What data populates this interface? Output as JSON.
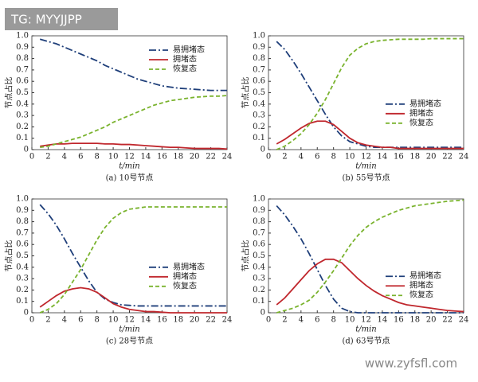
{
  "overlay": {
    "top_left": "TG: MYYJJPP",
    "bottom_right": "www.zyfsfl.com"
  },
  "chart_data": [
    {
      "type": "line",
      "caption": "(a) 10号节点",
      "xlabel": "t/min",
      "ylabel": "节点占比",
      "x": [
        1,
        2,
        3,
        4,
        5,
        6,
        7,
        8,
        9,
        10,
        11,
        12,
        13,
        14,
        15,
        16,
        17,
        18,
        19,
        20,
        21,
        22,
        23,
        24
      ],
      "xlim": [
        0,
        24
      ],
      "xticks": [
        0,
        2,
        4,
        6,
        8,
        10,
        12,
        14,
        16,
        18,
        20,
        22,
        24
      ],
      "ylim": [
        0,
        1
      ],
      "yticks": [
        0,
        0.1,
        0.2,
        0.3,
        0.4,
        0.5,
        0.6,
        0.7,
        0.8,
        0.9,
        {
          "value": 1,
          "label": "1.0"
        }
      ],
      "legend_position": "upper right",
      "series": [
        {
          "name": "易拥堵态",
          "color": "#1f3f7a",
          "dash": "dashdot",
          "values": [
            0.97,
            0.95,
            0.93,
            0.9,
            0.87,
            0.84,
            0.81,
            0.78,
            0.74,
            0.71,
            0.68,
            0.65,
            0.62,
            0.6,
            0.58,
            0.56,
            0.55,
            0.54,
            0.535,
            0.53,
            0.525,
            0.52,
            0.52,
            0.52
          ]
        },
        {
          "name": "拥堵态",
          "color": "#c0272d",
          "dash": "solid",
          "values": [
            0.03,
            0.04,
            0.05,
            0.05,
            0.055,
            0.055,
            0.055,
            0.055,
            0.05,
            0.05,
            0.045,
            0.045,
            0.04,
            0.035,
            0.03,
            0.025,
            0.02,
            0.02,
            0.015,
            0.01,
            0.01,
            0.01,
            0.01,
            0.005
          ]
        },
        {
          "name": "恢复态",
          "color": "#7ab32e",
          "dash": "dashed",
          "values": [
            0.02,
            0.03,
            0.05,
            0.07,
            0.09,
            0.11,
            0.14,
            0.17,
            0.2,
            0.24,
            0.27,
            0.3,
            0.33,
            0.36,
            0.39,
            0.41,
            0.43,
            0.44,
            0.45,
            0.46,
            0.465,
            0.47,
            0.47,
            0.475
          ]
        }
      ]
    },
    {
      "type": "line",
      "caption": "(b) 55号节点",
      "xlabel": "t/min",
      "ylabel": "节点占比",
      "x": [
        1,
        2,
        3,
        4,
        5,
        6,
        7,
        8,
        9,
        10,
        11,
        12,
        13,
        14,
        15,
        16,
        17,
        18,
        19,
        20,
        21,
        22,
        23,
        24
      ],
      "xlim": [
        0,
        24
      ],
      "xticks": [
        0,
        2,
        4,
        6,
        8,
        10,
        12,
        14,
        16,
        18,
        20,
        22,
        24
      ],
      "ylim": [
        0,
        1
      ],
      "yticks": [
        0,
        0.1,
        0.2,
        0.3,
        0.4,
        0.5,
        0.6,
        0.7,
        0.8,
        0.9,
        {
          "value": 1,
          "label": "1.0"
        }
      ],
      "legend_position": "center right",
      "series": [
        {
          "name": "易拥堵态",
          "color": "#1f3f7a",
          "dash": "dashdot",
          "values": [
            0.95,
            0.88,
            0.78,
            0.67,
            0.55,
            0.43,
            0.31,
            0.2,
            0.12,
            0.07,
            0.05,
            0.03,
            0.02,
            0.02,
            0.02,
            0.02,
            0.02,
            0.02,
            0.02,
            0.02,
            0.02,
            0.02,
            0.02,
            0.02
          ]
        },
        {
          "name": "拥堵态",
          "color": "#c0272d",
          "dash": "solid",
          "values": [
            0.05,
            0.09,
            0.14,
            0.19,
            0.23,
            0.25,
            0.25,
            0.22,
            0.16,
            0.1,
            0.06,
            0.04,
            0.03,
            0.02,
            0.02,
            0.01,
            0.01,
            0.01,
            0.01,
            0.01,
            0.01,
            0.01,
            0.01,
            0.01
          ]
        },
        {
          "name": "恢复态",
          "color": "#7ab32e",
          "dash": "dashed",
          "values": [
            0,
            0.03,
            0.08,
            0.14,
            0.22,
            0.32,
            0.44,
            0.58,
            0.72,
            0.83,
            0.89,
            0.93,
            0.95,
            0.96,
            0.965,
            0.97,
            0.97,
            0.97,
            0.97,
            0.975,
            0.975,
            0.975,
            0.975,
            0.975
          ]
        }
      ]
    },
    {
      "type": "line",
      "caption": "(c) 28号节点",
      "xlabel": "t/min",
      "ylabel": "节点占比",
      "x": [
        1,
        2,
        3,
        4,
        5,
        6,
        7,
        8,
        9,
        10,
        11,
        12,
        13,
        14,
        15,
        16,
        17,
        18,
        19,
        20,
        21,
        22,
        23,
        24
      ],
      "xlim": [
        0,
        24
      ],
      "xticks": [
        0,
        2,
        4,
        6,
        8,
        10,
        12,
        14,
        16,
        18,
        20,
        22,
        24
      ],
      "ylim": [
        0,
        1
      ],
      "yticks": [
        0,
        0.1,
        0.2,
        0.3,
        0.4,
        0.5,
        0.6,
        0.7,
        0.8,
        0.9,
        {
          "value": 1,
          "label": "1.0"
        }
      ],
      "legend_position": "center right",
      "series": [
        {
          "name": "易拥堵态",
          "color": "#1f3f7a",
          "dash": "dashdot",
          "values": [
            0.95,
            0.87,
            0.77,
            0.65,
            0.52,
            0.4,
            0.28,
            0.18,
            0.12,
            0.09,
            0.07,
            0.065,
            0.06,
            0.06,
            0.06,
            0.06,
            0.06,
            0.06,
            0.06,
            0.06,
            0.06,
            0.06,
            0.06,
            0.06
          ]
        },
        {
          "name": "拥堵态",
          "color": "#c0272d",
          "dash": "solid",
          "values": [
            0.05,
            0.1,
            0.15,
            0.19,
            0.21,
            0.22,
            0.21,
            0.18,
            0.13,
            0.08,
            0.05,
            0.03,
            0.02,
            0.01,
            0.01,
            0.005,
            0,
            0,
            0,
            0,
            0,
            0,
            0,
            0
          ]
        },
        {
          "name": "恢复态",
          "color": "#7ab32e",
          "dash": "dashed",
          "values": [
            0,
            0.03,
            0.08,
            0.16,
            0.27,
            0.38,
            0.51,
            0.64,
            0.75,
            0.83,
            0.88,
            0.91,
            0.92,
            0.93,
            0.93,
            0.93,
            0.93,
            0.93,
            0.93,
            0.93,
            0.93,
            0.93,
            0.93,
            0.93
          ]
        }
      ]
    },
    {
      "type": "line",
      "caption": "(d) 63号节点",
      "xlabel": "t/min",
      "ylabel": "节点占比",
      "x": [
        1,
        2,
        3,
        4,
        5,
        6,
        7,
        8,
        9,
        10,
        11,
        12,
        13,
        14,
        15,
        16,
        17,
        18,
        19,
        20,
        21,
        22,
        23,
        24
      ],
      "xlim": [
        0,
        24
      ],
      "xticks": [
        0,
        2,
        4,
        6,
        8,
        10,
        12,
        14,
        16,
        18,
        20,
        22,
        24
      ],
      "ylim": [
        0,
        1
      ],
      "yticks": [
        0,
        0.1,
        0.2,
        0.3,
        0.4,
        0.5,
        0.6,
        0.7,
        0.8,
        0.9,
        {
          "value": 1,
          "label": "1.0"
        }
      ],
      "legend_position": "lower right",
      "series": [
        {
          "name": "易拥堵态",
          "color": "#1f3f7a",
          "dash": "dashdot",
          "values": [
            0.94,
            0.86,
            0.76,
            0.65,
            0.52,
            0.38,
            0.24,
            0.12,
            0.04,
            0.01,
            0,
            0,
            0,
            0,
            0,
            0,
            0,
            0,
            0,
            0,
            0,
            0,
            0,
            0
          ]
        },
        {
          "name": "拥堵态",
          "color": "#c0272d",
          "dash": "solid",
          "values": [
            0.07,
            0.13,
            0.21,
            0.29,
            0.37,
            0.43,
            0.47,
            0.47,
            0.44,
            0.37,
            0.3,
            0.24,
            0.19,
            0.15,
            0.12,
            0.09,
            0.07,
            0.06,
            0.05,
            0.04,
            0.03,
            0.02,
            0.015,
            0.01
          ]
        },
        {
          "name": "恢复态",
          "color": "#7ab32e",
          "dash": "dashed",
          "values": [
            0,
            0.02,
            0.04,
            0.07,
            0.11,
            0.18,
            0.27,
            0.37,
            0.48,
            0.59,
            0.68,
            0.75,
            0.8,
            0.84,
            0.87,
            0.9,
            0.92,
            0.94,
            0.95,
            0.96,
            0.97,
            0.98,
            0.985,
            0.99
          ]
        }
      ]
    }
  ]
}
